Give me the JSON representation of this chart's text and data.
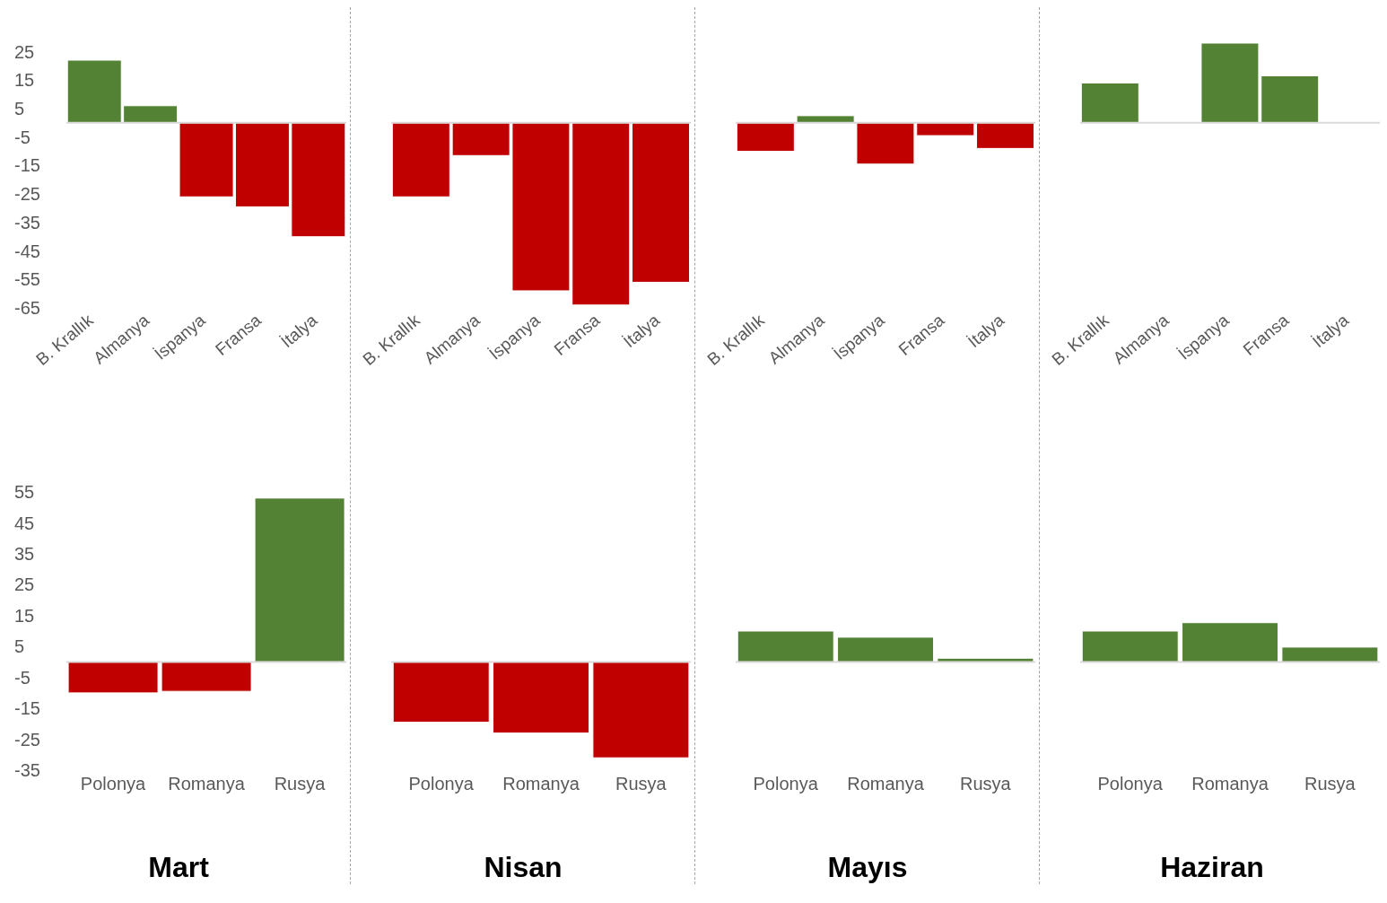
{
  "chart_data": [
    {
      "type": "bar",
      "categories": [
        "B. Krallık",
        "Almanya",
        "İspanya",
        "Fransa",
        "İtalya"
      ],
      "values": [
        22,
        6,
        -26,
        -29.5,
        -40
      ],
      "colors": [
        "#548235",
        "#548235",
        "#c00000",
        "#c00000",
        "#c00000"
      ],
      "ylim": [
        -65,
        25
      ],
      "yticks": [
        25,
        15,
        5,
        -5,
        -15,
        -25,
        -35,
        -45,
        -55,
        -65
      ],
      "grid": false,
      "legend": false
    },
    {
      "type": "bar",
      "categories": [
        "B. Krallık",
        "Almanya",
        "İspanya",
        "Fransa",
        "İtalya"
      ],
      "values": [
        -26,
        -11.5,
        -59,
        -64,
        -56
      ],
      "colors": [
        "#c00000",
        "#c00000",
        "#c00000",
        "#c00000",
        "#c00000"
      ],
      "ylim": [
        -65,
        25
      ],
      "yticks": [
        25,
        15,
        5,
        -5,
        -15,
        -25,
        -35,
        -45,
        -55,
        -65
      ],
      "tick_labels": "x",
      "grid": false,
      "legend": false
    },
    {
      "type": "bar",
      "categories": [
        "B. Krallık",
        "Almanya",
        "İspanya",
        "Fransa",
        "İtalya"
      ],
      "values": [
        -10,
        2.5,
        -14.5,
        -4.5,
        -9
      ],
      "colors": [
        "#c00000",
        "#548235",
        "#c00000",
        "#c00000",
        "#c00000"
      ],
      "ylim": [
        -65,
        25
      ],
      "yticks": [
        25,
        15,
        5,
        -5,
        -15,
        -25,
        -35,
        -45,
        -55,
        -65
      ],
      "tick_labels": "x",
      "grid": false,
      "legend": false
    },
    {
      "type": "bar",
      "categories": [
        "B. Krallık",
        "Almanya",
        "İspanya",
        "Fransa",
        "İtalya"
      ],
      "values": [
        14,
        0,
        28,
        16.5,
        0
      ],
      "colors": [
        "#548235",
        "#548235",
        "#548235",
        "#548235",
        "#548235"
      ],
      "ylim": [
        -65,
        28
      ],
      "yticks": [
        25,
        15,
        5,
        -5,
        -15,
        -25,
        -35,
        -45,
        -55,
        -65
      ],
      "tick_labels": "x",
      "grid": false,
      "legend": false
    },
    {
      "type": "bar",
      "title": "Mart",
      "categories": [
        "Polonya",
        "Romanya",
        "Rusya"
      ],
      "values": [
        -10,
        -9.5,
        53
      ],
      "colors": [
        "#c00000",
        "#c00000",
        "#548235"
      ],
      "ylim": [
        -35,
        55
      ],
      "yticks": [
        55,
        45,
        35,
        25,
        15,
        5,
        -5,
        -15,
        -25,
        -35
      ],
      "grid": false,
      "legend": false
    },
    {
      "type": "bar",
      "title": "Nisan",
      "categories": [
        "Polonya",
        "Romanya",
        "Rusya"
      ],
      "values": [
        -19.5,
        -23,
        -31
      ],
      "colors": [
        "#c00000",
        "#c00000",
        "#c00000"
      ],
      "ylim": [
        -35,
        55
      ],
      "yticks": [
        55,
        45,
        35,
        25,
        15,
        5,
        -5,
        -15,
        -25,
        -35
      ],
      "tick_labels": "x",
      "grid": false,
      "legend": false
    },
    {
      "type": "bar",
      "title": "Mayıs",
      "categories": [
        "Polonya",
        "Romanya",
        "Rusya"
      ],
      "values": [
        10,
        8,
        1.2
      ],
      "colors": [
        "#548235",
        "#548235",
        "#548235"
      ],
      "ylim": [
        -35,
        55
      ],
      "yticks": [
        55,
        45,
        35,
        25,
        15,
        5,
        -5,
        -15,
        -25,
        -35
      ],
      "tick_labels": "x",
      "grid": false,
      "legend": false
    },
    {
      "type": "bar",
      "title": "Haziran",
      "categories": [
        "Polonya",
        "Romanya",
        "Rusya"
      ],
      "values": [
        10,
        12.7,
        4.8
      ],
      "colors": [
        "#548235",
        "#548235",
        "#548235"
      ],
      "ylim": [
        -35,
        55
      ],
      "yticks": [
        55,
        45,
        35,
        25,
        15,
        5,
        -5,
        -15,
        -25,
        -35
      ],
      "tick_labels": "x",
      "grid": false,
      "legend": false
    }
  ]
}
